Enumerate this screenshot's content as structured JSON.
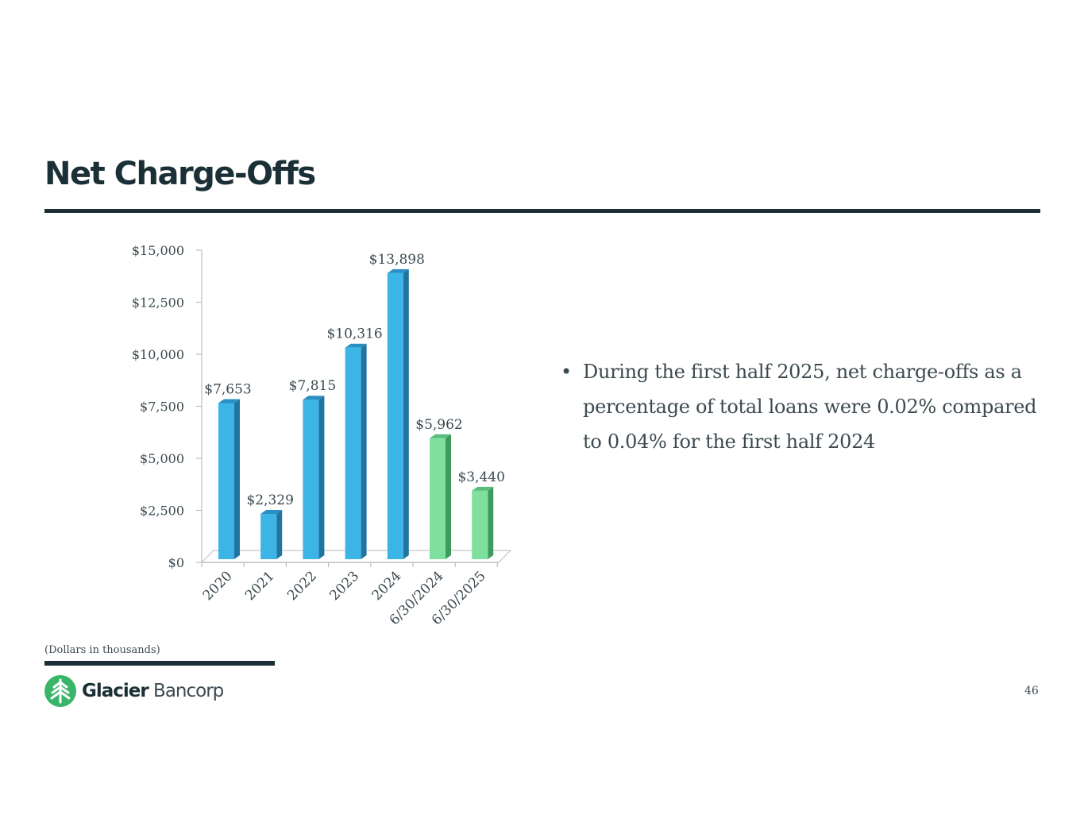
{
  "title": "Net Charge-Offs",
  "bullets": [
    "During the first half 2025, net charge-offs as a percentage of total loans were 0.02% compared to 0.04% for the first half 2024"
  ],
  "footnote": "(Dollars in thousands)",
  "logo": {
    "bold": "Glacier",
    "light": " Bancorp",
    "icon": "pine-tree-icon"
  },
  "page_number": "46",
  "colors": {
    "bar_blue": "#3cb4e6",
    "bar_green": "#7fe09e",
    "text_dark": "#1b3036"
  },
  "chart_data": {
    "type": "bar",
    "categories": [
      "2020",
      "2021",
      "2022",
      "2023",
      "2024",
      "6/30/2024",
      "6/30/2025"
    ],
    "values": [
      7653,
      2329,
      7815,
      10316,
      13898,
      5962,
      3440
    ],
    "data_labels": [
      "$7,653",
      "$2,329",
      "$7,815",
      "$10,316",
      "$13,898",
      "$5,962",
      "$3,440"
    ],
    "bar_colors": [
      "blue",
      "blue",
      "blue",
      "blue",
      "blue",
      "green",
      "green"
    ],
    "ylim": [
      0,
      15000
    ],
    "yticks": [
      0,
      2500,
      5000,
      7500,
      10000,
      12500,
      15000
    ],
    "ytick_labels": [
      "$0",
      "$2,500",
      "$5,000",
      "$7,500",
      "$10,000",
      "$12,500",
      "$15,000"
    ],
    "grid": false,
    "legend": "none"
  }
}
